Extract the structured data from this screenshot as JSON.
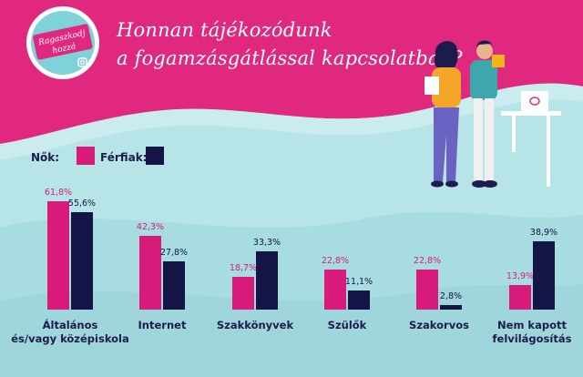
{
  "title_line1": "Honnan tájékozódunk",
  "title_line2": "a fogamzásgátlással kapcsolatban?",
  "logo": {
    "text": "Ragaszkodj hozzá",
    "icon": "instagram-icon"
  },
  "legend": {
    "women": "Nők:",
    "men": "Férfiak:"
  },
  "colors": {
    "women": "#d81b7a",
    "men": "#141446",
    "header": "#e0297e",
    "background": "#b7e4e7",
    "text": "#1c1c4c"
  },
  "chart_data": {
    "type": "bar",
    "categories": [
      [
        "Általános",
        "és/vagy középiskola"
      ],
      [
        "Internet"
      ],
      [
        "Szakkönyvek"
      ],
      [
        "Szülők"
      ],
      [
        "Szakorvos"
      ],
      [
        "Nem kapott",
        "felvilágosítás"
      ]
    ],
    "series": [
      {
        "name": "Nők",
        "values": [
          61.8,
          42.3,
          18.7,
          22.8,
          22.8,
          13.9
        ],
        "labels": [
          "61,8%",
          "42,3%",
          "18,7%",
          "22,8%",
          "22,8%",
          "13,9%"
        ]
      },
      {
        "name": "Férfiak",
        "values": [
          55.6,
          27.8,
          33.3,
          11.1,
          2.8,
          38.9
        ],
        "labels": [
          "55,6%",
          "27,8%",
          "33,3%",
          "11,1%",
          "2,8%",
          "38,9%"
        ]
      }
    ],
    "ylim": [
      0,
      65
    ],
    "grid": false,
    "legend_position": "top-left"
  }
}
